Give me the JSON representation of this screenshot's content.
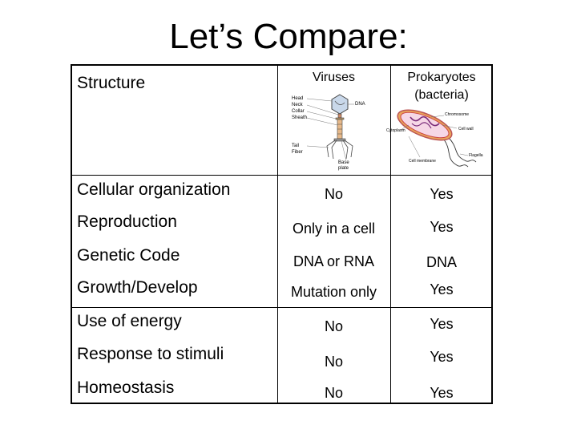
{
  "title": "Let’s Compare:",
  "header": {
    "structure": "Structure",
    "viruses": "Viruses",
    "prokaryotes_line1": "Prokaryotes",
    "prokaryotes_line2": "(bacteria)"
  },
  "virus_diagram": {
    "labels": [
      "Head",
      "Neck",
      "Collar",
      "Sheath",
      "Tail Fiber",
      "DNA",
      "Base plate"
    ]
  },
  "bacteria_diagram": {
    "labels": [
      "Chromosome",
      "Cytoplasm",
      "Flagella",
      "Cell membrane",
      "Cell wall"
    ]
  },
  "rows": [
    {
      "structure": "Cellular organization",
      "viruses": "No",
      "prokaryotes": "Yes"
    },
    {
      "structure": "Reproduction",
      "viruses": "Only in a cell",
      "prokaryotes": "Yes"
    },
    {
      "structure": "Genetic Code",
      "viruses": "DNA or RNA",
      "prokaryotes": "DNA"
    },
    {
      "structure": "Growth/Develop",
      "viruses": "Mutation only",
      "prokaryotes": "Yes"
    },
    {
      "structure": "Use of energy",
      "viruses": "No",
      "prokaryotes": "Yes"
    },
    {
      "structure": "Response to stimuli",
      "viruses": "No",
      "prokaryotes": "Yes"
    },
    {
      "structure": "Homeostasis",
      "viruses": "No",
      "prokaryotes": "Yes"
    }
  ]
}
